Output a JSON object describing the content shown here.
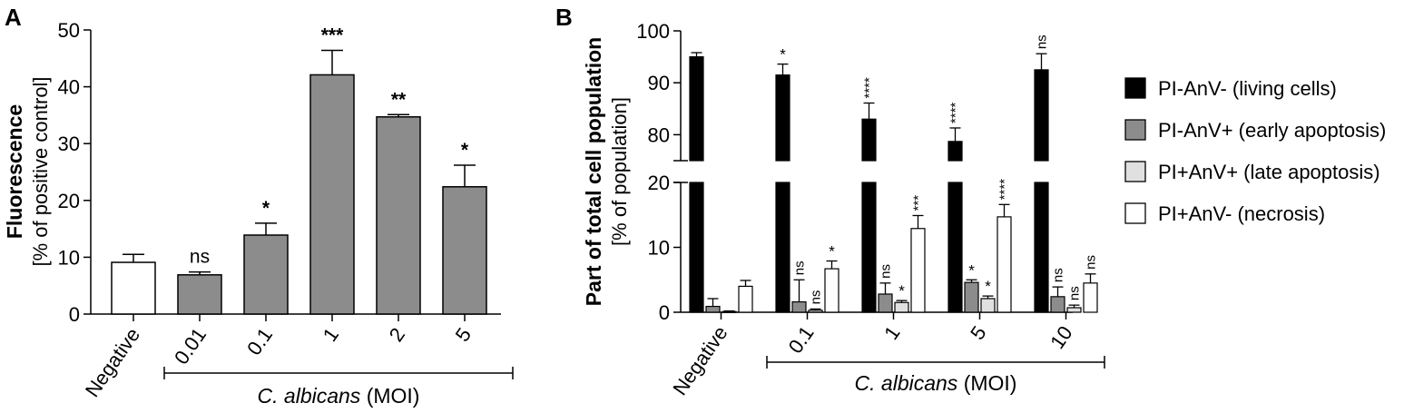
{
  "chart_data": [
    {
      "panel_label": "A",
      "type": "bar",
      "ylabel_line1": "Fluorescence",
      "ylabel_line2": "[% of positive control]",
      "ylim": [
        0,
        50
      ],
      "yticks": [
        "0",
        "10",
        "20",
        "30",
        "40",
        "50"
      ],
      "categories": [
        "Negative",
        "0.01",
        "0.1",
        "1",
        "2",
        "5"
      ],
      "values": [
        9.1,
        6.9,
        13.9,
        42.1,
        34.7,
        22.4
      ],
      "errors": [
        1.4,
        0.5,
        2.1,
        4.3,
        0.4,
        3.8
      ],
      "significance": [
        "",
        "ns",
        "*",
        "***",
        "**",
        "*"
      ],
      "bar_colors": [
        "#ffffff",
        "#8c8c8c",
        "#8c8c8c",
        "#8c8c8c",
        "#8c8c8c",
        "#8c8c8c"
      ],
      "group_label_italic": "C. albicans",
      "group_label_rest": " (MOI)"
    },
    {
      "panel_label": "B",
      "type": "bar",
      "ylabel_line1": "Part of total cell population",
      "ylabel_line2": "[% of population]",
      "axis_break": {
        "lower": [
          0,
          20
        ],
        "upper": [
          75,
          100
        ]
      },
      "yticks_lower": [
        "0",
        "10",
        "20"
      ],
      "yticks_upper": [
        "80",
        "90",
        "100"
      ],
      "categories": [
        "Negative",
        "0.1",
        "1",
        "5",
        "10"
      ],
      "series": [
        {
          "name": "PI-AnV- (living cells)",
          "color": "#000000",
          "values": [
            95.0,
            91.5,
            83.0,
            78.7,
            92.5
          ],
          "errors": [
            0.8,
            2.1,
            3.1,
            2.6,
            3.1
          ],
          "significance": [
            "",
            "*",
            "****",
            "****",
            "ns"
          ]
        },
        {
          "name": "PI-AnV+ (early apoptosis)",
          "color": "#8c8c8c",
          "values": [
            0.9,
            1.6,
            2.8,
            4.6,
            2.4
          ],
          "errors": [
            1.2,
            3.4,
            1.7,
            0.4,
            1.5
          ],
          "significance": [
            "",
            "ns",
            "ns",
            "*",
            "ns"
          ]
        },
        {
          "name": "PI+AnV+ (late apoptosis)",
          "color": "#e0e0e0",
          "values": [
            0.1,
            0.3,
            1.5,
            2.1,
            0.7
          ],
          "errors": [
            0.1,
            0.2,
            0.3,
            0.4,
            0.4
          ],
          "significance": [
            "",
            "ns",
            "*",
            "*",
            "ns"
          ]
        },
        {
          "name": "PI+AnV- (necrosis)",
          "color": "#ffffff",
          "values": [
            4.0,
            6.7,
            12.9,
            14.7,
            4.5
          ],
          "errors": [
            0.9,
            1.2,
            2.0,
            1.9,
            1.4
          ],
          "significance": [
            "",
            "*",
            "***",
            "****",
            "ns"
          ]
        }
      ],
      "group_label_italic": "C. albicans",
      "group_label_rest": " (MOI)"
    }
  ]
}
